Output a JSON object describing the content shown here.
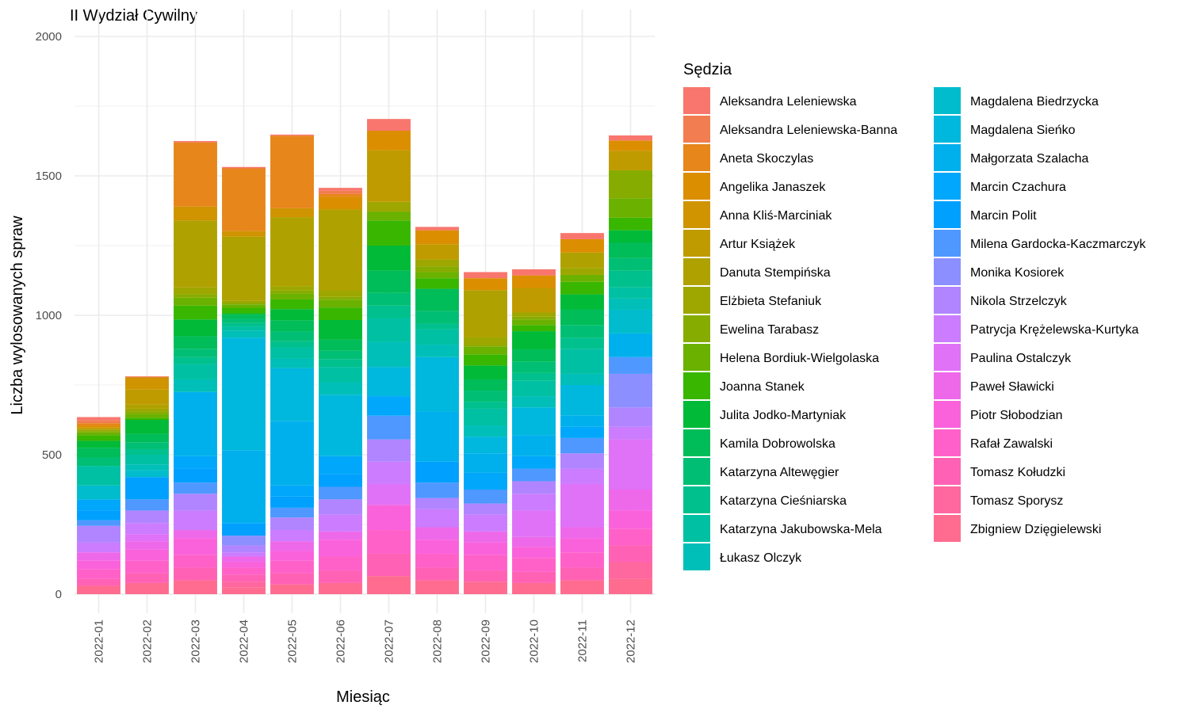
{
  "chart_data": {
    "type": "bar",
    "stacked": true,
    "title": "II Wydział Cywilny",
    "xlabel": "Miesiąc",
    "ylabel": "Liczba wylosowanych spraw",
    "ylim": [
      0,
      2000
    ],
    "yticks": [
      0,
      500,
      1000,
      1500,
      2000
    ],
    "grid": true,
    "legend_title": "Sędzia",
    "legend_position": "right",
    "categories": [
      "2022-01",
      "2022-02",
      "2022-03",
      "2022-04",
      "2022-05",
      "2022-06",
      "2022-07",
      "2022-08",
      "2022-09",
      "2022-10",
      "2022-11",
      "2022-12"
    ],
    "series": [
      {
        "name": "Aleksandra Leleniewska",
        "color": "#F8766D",
        "values": [
          12,
          0,
          5,
          5,
          4,
          10,
          42,
          12,
          22,
          22,
          22,
          18
        ]
      },
      {
        "name": "Aleksandra Leleniewska-Banna",
        "color": "#F17D50",
        "values": [
          10,
          4,
          0,
          0,
          0,
          12,
          0,
          0,
          0,
          0,
          0,
          0
        ]
      },
      {
        "name": "Aneta Skoczylas",
        "color": "#E7861B",
        "values": [
          8,
          0,
          230,
          225,
          260,
          10,
          0,
          0,
          0,
          0,
          0,
          0
        ]
      },
      {
        "name": "Angelika Janaszek",
        "color": "#DB8E00",
        "values": [
          6,
          0,
          0,
          0,
          0,
          40,
          70,
          50,
          43,
          45,
          48,
          37
        ]
      },
      {
        "name": "Anna Kliś-Marciniak",
        "color": "#CF9400",
        "values": [
          5,
          42,
          50,
          20,
          32,
          7,
          0,
          0,
          0,
          0,
          0,
          0
        ]
      },
      {
        "name": "Artur Książek",
        "color": "#C09B00",
        "values": [
          0,
          55,
          0,
          0,
          0,
          0,
          185,
          55,
          0,
          88,
          0,
          70
        ]
      },
      {
        "name": "Danuta Stempińska",
        "color": "#AFA100",
        "values": [
          4,
          15,
          240,
          230,
          248,
          290,
          0,
          0,
          168,
          0,
          55,
          0
        ]
      },
      {
        "name": "Elżbieta Stefaniuk",
        "color": "#9DA700",
        "values": [
          5,
          10,
          25,
          8,
          15,
          22,
          35,
          25,
          30,
          15,
          25,
          0
        ]
      },
      {
        "name": "Ewelina Tarabasz",
        "color": "#87AC00",
        "values": [
          5,
          10,
          12,
          5,
          12,
          10,
          0,
          20,
          5,
          10,
          0,
          100
        ]
      },
      {
        "name": "Helena Bordiuk-Wielgolaska",
        "color": "#6BB100",
        "values": [
          10,
          12,
          28,
          12,
          20,
          28,
          32,
          22,
          27,
          20,
          25,
          70
        ]
      },
      {
        "name": "Joanna Stanek",
        "color": "#39B600",
        "values": [
          20,
          8,
          50,
          20,
          35,
          45,
          90,
          38,
          40,
          22,
          45,
          45
        ]
      },
      {
        "name": "Julita Jodko-Martyniak",
        "color": "#00BA38",
        "values": [
          25,
          50,
          60,
          5,
          40,
          70,
          90,
          0,
          50,
          65,
          55,
          45
        ]
      },
      {
        "name": "Kamila Dobrowolska",
        "color": "#00BC59",
        "values": [
          35,
          30,
          45,
          15,
          40,
          40,
          80,
          80,
          40,
          45,
          55,
          55
        ]
      },
      {
        "name": "Katarzyna Altewęgier",
        "color": "#00BF74",
        "values": [
          30,
          25,
          30,
          15,
          35,
          30,
          45,
          45,
          40,
          40,
          45,
          45
        ]
      },
      {
        "name": "Katarzyna Cieśniarska",
        "color": "#00C08D",
        "values": [
          0,
          20,
          25,
          12,
          22,
          28,
          45,
          20,
          25,
          28,
          40,
          60
        ]
      },
      {
        "name": "Katarzyna Jakubowska-Mela",
        "color": "#00C0A3",
        "values": [
          70,
          35,
          55,
          15,
          40,
          55,
          85,
          55,
          60,
          55,
          90,
          40
        ]
      },
      {
        "name": "Łukasz Olczyk",
        "color": "#00BFB8",
        "values": [
          0,
          20,
          45,
          25,
          35,
          45,
          90,
          45,
          40,
          40,
          40,
          40
        ]
      },
      {
        "name": "Magdalena Biedrzycka",
        "color": "#00BCCC",
        "values": [
          50,
          25,
          0,
          0,
          0,
          0,
          0,
          0,
          0,
          0,
          0,
          85
        ]
      },
      {
        "name": "Magdalena Sieńko",
        "color": "#00B7DE",
        "values": [
          0,
          0,
          0,
          405,
          190,
          220,
          105,
          195,
          60,
          100,
          110,
          0
        ]
      },
      {
        "name": "Małgorzata Szalacha",
        "color": "#00B0ED",
        "values": [
          0,
          0,
          230,
          260,
          230,
          0,
          0,
          180,
          70,
          75,
          40,
          85
        ]
      },
      {
        "name": "Marcin Czachura",
        "color": "#00A7FA",
        "values": [
          40,
          0,
          45,
          0,
          40,
          65,
          70,
          0,
          60,
          45,
          40,
          0
        ]
      },
      {
        "name": "Marcin Polit",
        "color": "#00A0FF",
        "values": [
          35,
          80,
          50,
          45,
          40,
          45,
          0,
          75,
          0,
          0,
          0,
          0
        ]
      },
      {
        "name": "Milena Gardocka-Kaczmarczyk",
        "color": "#4E98FF",
        "values": [
          20,
          40,
          40,
          0,
          35,
          45,
          85,
          55,
          50,
          45,
          55,
          60
        ]
      },
      {
        "name": "Monika Kosiorek",
        "color": "#8C8FFF",
        "values": [
          0,
          0,
          0,
          35,
          0,
          0,
          0,
          0,
          0,
          0,
          0,
          120
        ]
      },
      {
        "name": "Nikola Strzelczyk",
        "color": "#B185FF",
        "values": [
          60,
          45,
          60,
          25,
          45,
          55,
          80,
          40,
          40,
          45,
          55,
          70
        ]
      },
      {
        "name": "Patrycja Krężelewska-Kurtyka",
        "color": "#CB7CFF",
        "values": [
          35,
          40,
          70,
          15,
          40,
          60,
          80,
          65,
          60,
          60,
          55,
          45
        ]
      },
      {
        "name": "Paulina Ostalczyk",
        "color": "#DF72F6",
        "values": [
          0,
          25,
          0,
          0,
          0,
          0,
          75,
          0,
          0,
          95,
          155,
          180
        ]
      },
      {
        "name": "Paweł Sławicki",
        "color": "#EE69EA",
        "values": [
          30,
          30,
          30,
          20,
          35,
          30,
          0,
          45,
          40,
          35,
          40,
          75
        ]
      },
      {
        "name": "Piotr Słobodzian",
        "color": "#FA62DB",
        "values": [
          30,
          40,
          60,
          20,
          35,
          60,
          90,
          50,
          45,
          40,
          50,
          65
        ]
      },
      {
        "name": "Rafał Zawalski",
        "color": "#FF61C9",
        "values": [
          35,
          45,
          45,
          25,
          45,
          50,
          85,
          50,
          55,
          50,
          55,
          60
        ]
      },
      {
        "name": "Tomasz Kołudzki",
        "color": "#FF62B4",
        "values": [
          25,
          35,
          45,
          25,
          40,
          45,
          80,
          45,
          40,
          40,
          45,
          60
        ]
      },
      {
        "name": "Tomasz Sporysz",
        "color": "#FF679F",
        "values": [
          0,
          0,
          0,
          20,
          0,
          0,
          0,
          0,
          0,
          0,
          0,
          60
        ]
      },
      {
        "name": "Zbigniew Dzięgielewski",
        "color": "#FF6C90",
        "values": [
          30,
          40,
          50,
          25,
          35,
          40,
          65,
          50,
          45,
          40,
          50,
          55
        ]
      }
    ]
  }
}
